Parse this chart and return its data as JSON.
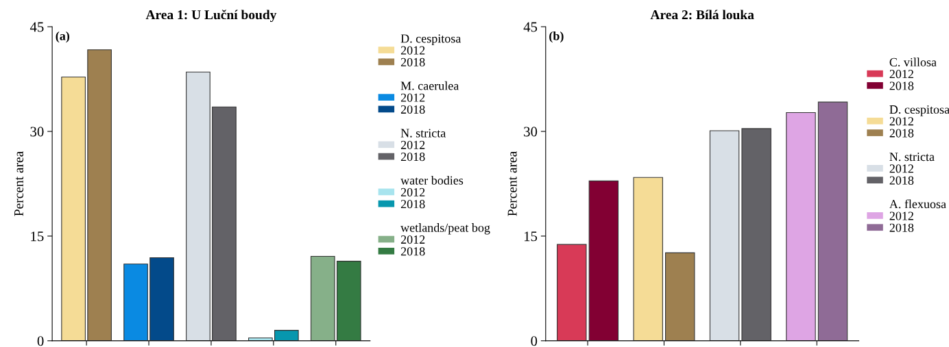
{
  "chart_data": [
    {
      "type": "bar",
      "title": "Area 1: U Luční boudy",
      "ylabel": "Percent area",
      "categories": [
        null,
        null,
        null,
        null,
        null
      ],
      "series": [
        {
          "name": "2012",
          "color": "#f5dc96",
          "values": [
            37.8,
            null,
            null,
            null,
            null
          ]
        },
        {
          "name": "2018",
          "color": "#9e8050",
          "values": [
            41.7,
            null,
            null,
            null,
            null
          ]
        },
        {
          "name": "2012",
          "color": "#0a8ae2",
          "values": [
            null,
            11.0,
            null,
            null,
            null
          ]
        },
        {
          "name": "2018",
          "color": "#034a8a",
          "values": [
            null,
            11.9,
            null,
            null,
            null
          ]
        },
        {
          "name": "2012",
          "color": "#d8dfe6",
          "values": [
            null,
            null,
            38.5,
            null,
            null
          ]
        },
        {
          "name": "2018",
          "color": "#636267",
          "values": [
            null,
            null,
            33.5,
            null,
            null
          ]
        },
        {
          "name": "2012",
          "color": "#a8e4ee",
          "values": [
            null,
            null,
            null,
            0.4,
            null
          ]
        },
        {
          "name": "2018",
          "color": "#0797ae",
          "values": [
            null,
            null,
            null,
            1.5,
            null
          ]
        },
        {
          "name": "2012",
          "color": "#86b089",
          "values": [
            null,
            null,
            null,
            null,
            12.1
          ]
        },
        {
          "name": "2018",
          "color": "#347b43",
          "values": [
            null,
            null,
            null,
            null,
            11.4
          ]
        }
      ],
      "annotations": [
        "(a)",
        "D. cespitosa",
        "M. caerulea",
        "N. stricta",
        "water bodies",
        "wetlands/peat bog"
      ],
      "ylim": [
        0,
        45
      ],
      "yticks": [
        0,
        15,
        30,
        45
      ],
      "tick_labels": "y",
      "legend": "right",
      "grid": false
    },
    {
      "type": "bar",
      "title": "Area 2: Bílá louka",
      "ylabel": "Percent area",
      "categories": [
        null,
        null,
        null,
        null
      ],
      "series": [
        {
          "name": "2012",
          "color": "#d83a57",
          "values": [
            13.8,
            null,
            null,
            null
          ]
        },
        {
          "name": "2018",
          "color": "#820033",
          "values": [
            22.9,
            null,
            null,
            null
          ]
        },
        {
          "name": "2012",
          "color": "#f5dc96",
          "values": [
            null,
            23.4,
            null,
            null
          ]
        },
        {
          "name": "2018",
          "color": "#9e8050",
          "values": [
            null,
            12.6,
            null,
            null
          ]
        },
        {
          "name": "2012",
          "color": "#d8dfe6",
          "values": [
            null,
            null,
            30.1,
            null
          ]
        },
        {
          "name": "2018",
          "color": "#636267",
          "values": [
            null,
            null,
            30.4,
            null
          ]
        },
        {
          "name": "2012",
          "color": "#dea5e4",
          "values": [
            null,
            null,
            null,
            32.7
          ]
        },
        {
          "name": "2018",
          "color": "#8f6b96",
          "values": [
            null,
            null,
            null,
            34.2
          ]
        }
      ],
      "annotations": [
        "(b)",
        "C. villosa",
        "D. cespitosa",
        "N. stricta",
        "A. flexuosa"
      ],
      "ylim": [
        0,
        45
      ],
      "yticks": [
        0,
        15,
        30,
        45
      ],
      "tick_labels": "y",
      "legend": "right",
      "grid": false
    }
  ]
}
